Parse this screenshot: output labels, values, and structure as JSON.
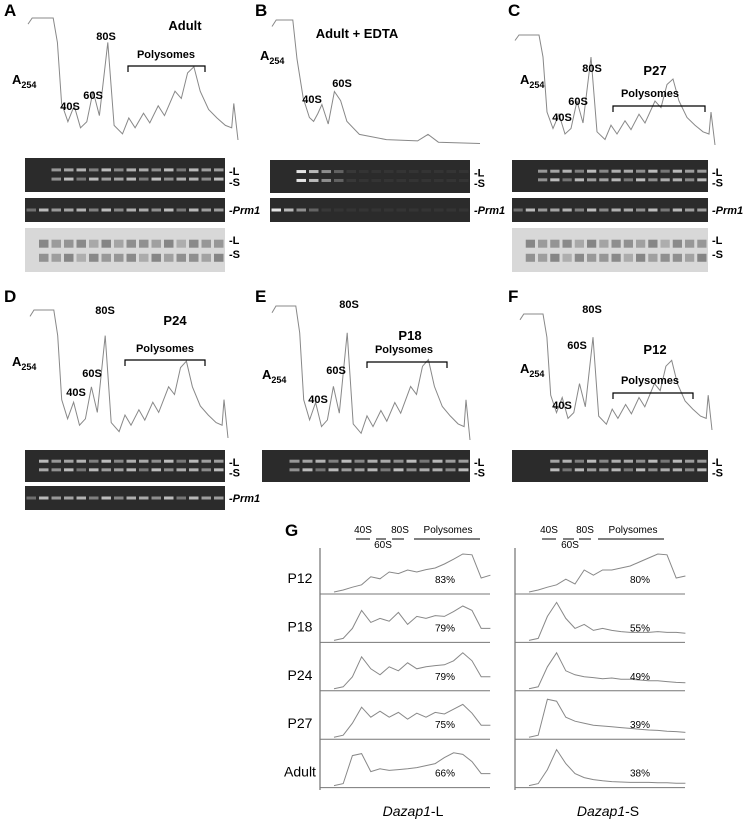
{
  "panels": [
    {
      "letter": "A",
      "title": "Adult",
      "y_label": {
        "main": "A",
        "sub": "254"
      },
      "peaks": [
        "40S",
        "60S",
        "80S"
      ],
      "bracket": "Polysomes",
      "gel_labels": [
        "-L",
        "-S"
      ],
      "prm1_label": "-Prm1",
      "blot_labels": [
        "-L",
        "-S"
      ]
    },
    {
      "letter": "B",
      "title": "Adult  + EDTA",
      "y_label": {
        "main": "A",
        "sub": "254"
      },
      "peaks": [
        "40S",
        "60S"
      ],
      "gel_labels": [
        "-L",
        "-S"
      ],
      "prm1_label": "-Prm1"
    },
    {
      "letter": "C",
      "title": "P27",
      "y_label": {
        "main": "A",
        "sub": "254"
      },
      "peaks": [
        "40S",
        "60S",
        "80S"
      ],
      "bracket": "Polysomes",
      "gel_labels": [
        "-L",
        "-S"
      ],
      "prm1_label": "-Prm1",
      "blot_labels": [
        "-L",
        "-S"
      ]
    },
    {
      "letter": "D",
      "title": "P24",
      "y_label": {
        "main": "A",
        "sub": "254"
      },
      "peaks": [
        "40S",
        "60S",
        "80S"
      ],
      "bracket": "Polysomes",
      "gel_labels": [
        "-L",
        "-S"
      ],
      "prm1_label": "-Prm1"
    },
    {
      "letter": "E",
      "title": "P18",
      "y_label": {
        "main": "A",
        "sub": "254"
      },
      "peaks": [
        "40S",
        "60S",
        "80S"
      ],
      "bracket": "Polysomes",
      "gel_labels": [
        "-L",
        "-S"
      ]
    },
    {
      "letter": "F",
      "title": "P12",
      "y_label": {
        "main": "A",
        "sub": "254"
      },
      "peaks": [
        "40S",
        "60S",
        "80S"
      ],
      "bracket": "Polysomes",
      "gel_labels": [
        "-L",
        "-S"
      ]
    }
  ],
  "panel_g": {
    "letter": "G",
    "fractions_l": [
      "40S",
      "60S",
      "80S",
      "Polysomes"
    ],
    "fractions_s": [
      "40S",
      "60S",
      "80S",
      "Polysomes"
    ],
    "rows": [
      {
        "label": "P12",
        "pct_l": "83%",
        "pct_s": "80%"
      },
      {
        "label": "P18",
        "pct_l": "79%",
        "pct_s": "55%"
      },
      {
        "label": "P24",
        "pct_l": "79%",
        "pct_s": "49%"
      },
      {
        "label": "P27",
        "pct_l": "75%",
        "pct_s": "39%"
      },
      {
        "label": "Adult",
        "pct_l": "66%",
        "pct_s": "38%"
      }
    ],
    "x_labels": [
      {
        "gene": "Dazap1",
        "suffix": "-L"
      },
      {
        "gene": "Dazap1",
        "suffix": "-S"
      }
    ]
  }
}
